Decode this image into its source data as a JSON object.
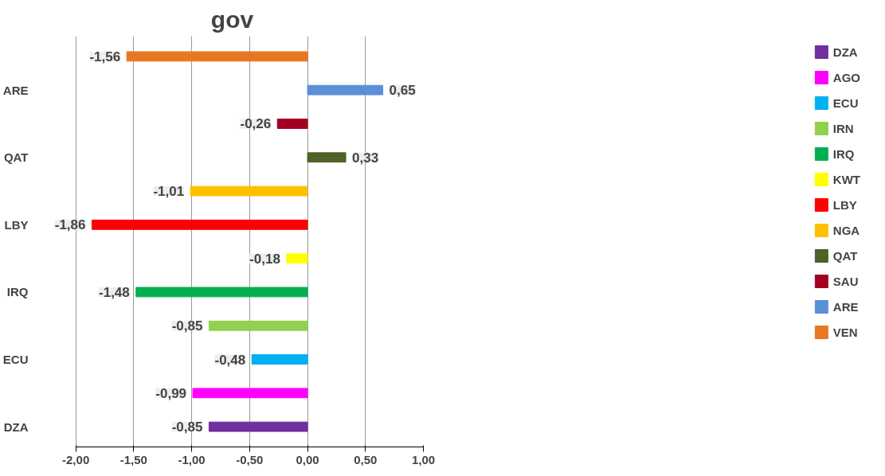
{
  "chart_data": {
    "type": "bar",
    "orientation": "horizontal",
    "title": "gov",
    "categories": [
      null,
      "ARE",
      null,
      "QAT",
      null,
      "LBY",
      null,
      "IRQ",
      null,
      "ECU",
      null,
      "DZA"
    ],
    "series": [
      {
        "name": "VEN",
        "color": "#e87722",
        "values": [
          -1.56,
          null,
          null,
          null,
          null,
          null,
          null,
          null,
          null,
          null,
          null,
          null
        ],
        "value_labels": [
          "-1,56",
          null,
          null,
          null,
          null,
          null,
          null,
          null,
          null,
          null,
          null,
          null
        ]
      },
      {
        "name": "ARE",
        "color": "#5b8fd6",
        "values": [
          null,
          0.65,
          null,
          null,
          null,
          null,
          null,
          null,
          null,
          null,
          null,
          null
        ],
        "value_labels": [
          null,
          "0,65",
          null,
          null,
          null,
          null,
          null,
          null,
          null,
          null,
          null,
          null
        ]
      },
      {
        "name": "SAU",
        "color": "#a50021",
        "values": [
          null,
          null,
          -0.26,
          null,
          null,
          null,
          null,
          null,
          null,
          null,
          null,
          null
        ],
        "value_labels": [
          null,
          null,
          "-0,26",
          null,
          null,
          null,
          null,
          null,
          null,
          null,
          null,
          null
        ]
      },
      {
        "name": "QAT",
        "color": "#4f6228",
        "values": [
          null,
          null,
          null,
          0.33,
          null,
          null,
          null,
          null,
          null,
          null,
          null,
          null
        ],
        "value_labels": [
          null,
          null,
          null,
          "0,33",
          null,
          null,
          null,
          null,
          null,
          null,
          null,
          null
        ]
      },
      {
        "name": "NGA",
        "color": "#ffc000",
        "values": [
          null,
          null,
          null,
          null,
          -1.01,
          null,
          null,
          null,
          null,
          null,
          null,
          null
        ],
        "value_labels": [
          null,
          null,
          null,
          null,
          "-1,01",
          null,
          null,
          null,
          null,
          null,
          null,
          null
        ]
      },
      {
        "name": "LBY",
        "color": "#ff0000",
        "values": [
          null,
          null,
          null,
          null,
          null,
          -1.86,
          null,
          null,
          null,
          null,
          null,
          null
        ],
        "value_labels": [
          null,
          null,
          null,
          null,
          null,
          "-1,86",
          null,
          null,
          null,
          null,
          null,
          null
        ]
      },
      {
        "name": "KWT",
        "color": "#ffff00",
        "values": [
          null,
          null,
          null,
          null,
          null,
          null,
          -0.18,
          null,
          null,
          null,
          null,
          null
        ],
        "value_labels": [
          null,
          null,
          null,
          null,
          null,
          null,
          "-0,18",
          null,
          null,
          null,
          null,
          null
        ]
      },
      {
        "name": "IRQ",
        "color": "#00b050",
        "values": [
          null,
          null,
          null,
          null,
          null,
          null,
          null,
          -1.48,
          null,
          null,
          null,
          null
        ],
        "value_labels": [
          null,
          null,
          null,
          null,
          null,
          null,
          null,
          "-1,48",
          null,
          null,
          null,
          null
        ]
      },
      {
        "name": "IRN",
        "color": "#92d050",
        "values": [
          null,
          null,
          null,
          null,
          null,
          null,
          null,
          null,
          -0.85,
          null,
          null,
          null
        ],
        "value_labels": [
          null,
          null,
          null,
          null,
          null,
          null,
          null,
          null,
          "-0,85",
          null,
          null,
          null
        ]
      },
      {
        "name": "ECU",
        "color": "#00b0f0",
        "values": [
          null,
          null,
          null,
          null,
          null,
          null,
          null,
          null,
          null,
          -0.48,
          null,
          null
        ],
        "value_labels": [
          null,
          null,
          null,
          null,
          null,
          null,
          null,
          null,
          null,
          "-0,48",
          null,
          null
        ]
      },
      {
        "name": "AGO",
        "color": "#ff00ff",
        "values": [
          null,
          null,
          null,
          null,
          null,
          null,
          null,
          null,
          null,
          null,
          -0.99,
          null
        ],
        "value_labels": [
          null,
          null,
          null,
          null,
          null,
          null,
          null,
          null,
          null,
          null,
          "-0,99",
          null
        ]
      },
      {
        "name": "DZA",
        "color": "#7030a0",
        "values": [
          null,
          null,
          null,
          null,
          null,
          null,
          null,
          null,
          null,
          null,
          null,
          -0.85
        ],
        "value_labels": [
          null,
          null,
          null,
          null,
          null,
          null,
          null,
          null,
          null,
          null,
          null,
          "-0,85"
        ]
      }
    ],
    "xlim": [
      -2,
      1
    ],
    "xticks": [
      {
        "value": -2,
        "label": "-2,00"
      },
      {
        "value": -1.5,
        "label": "-1,50"
      },
      {
        "value": -1,
        "label": "-1,00"
      },
      {
        "value": -0.5,
        "label": "-0,50"
      },
      {
        "value": 0,
        "label": "0,00"
      },
      {
        "value": 0.5,
        "label": "0,50"
      },
      {
        "value": 1,
        "label": "1,00"
      }
    ],
    "grid": "x",
    "legend": "right"
  }
}
